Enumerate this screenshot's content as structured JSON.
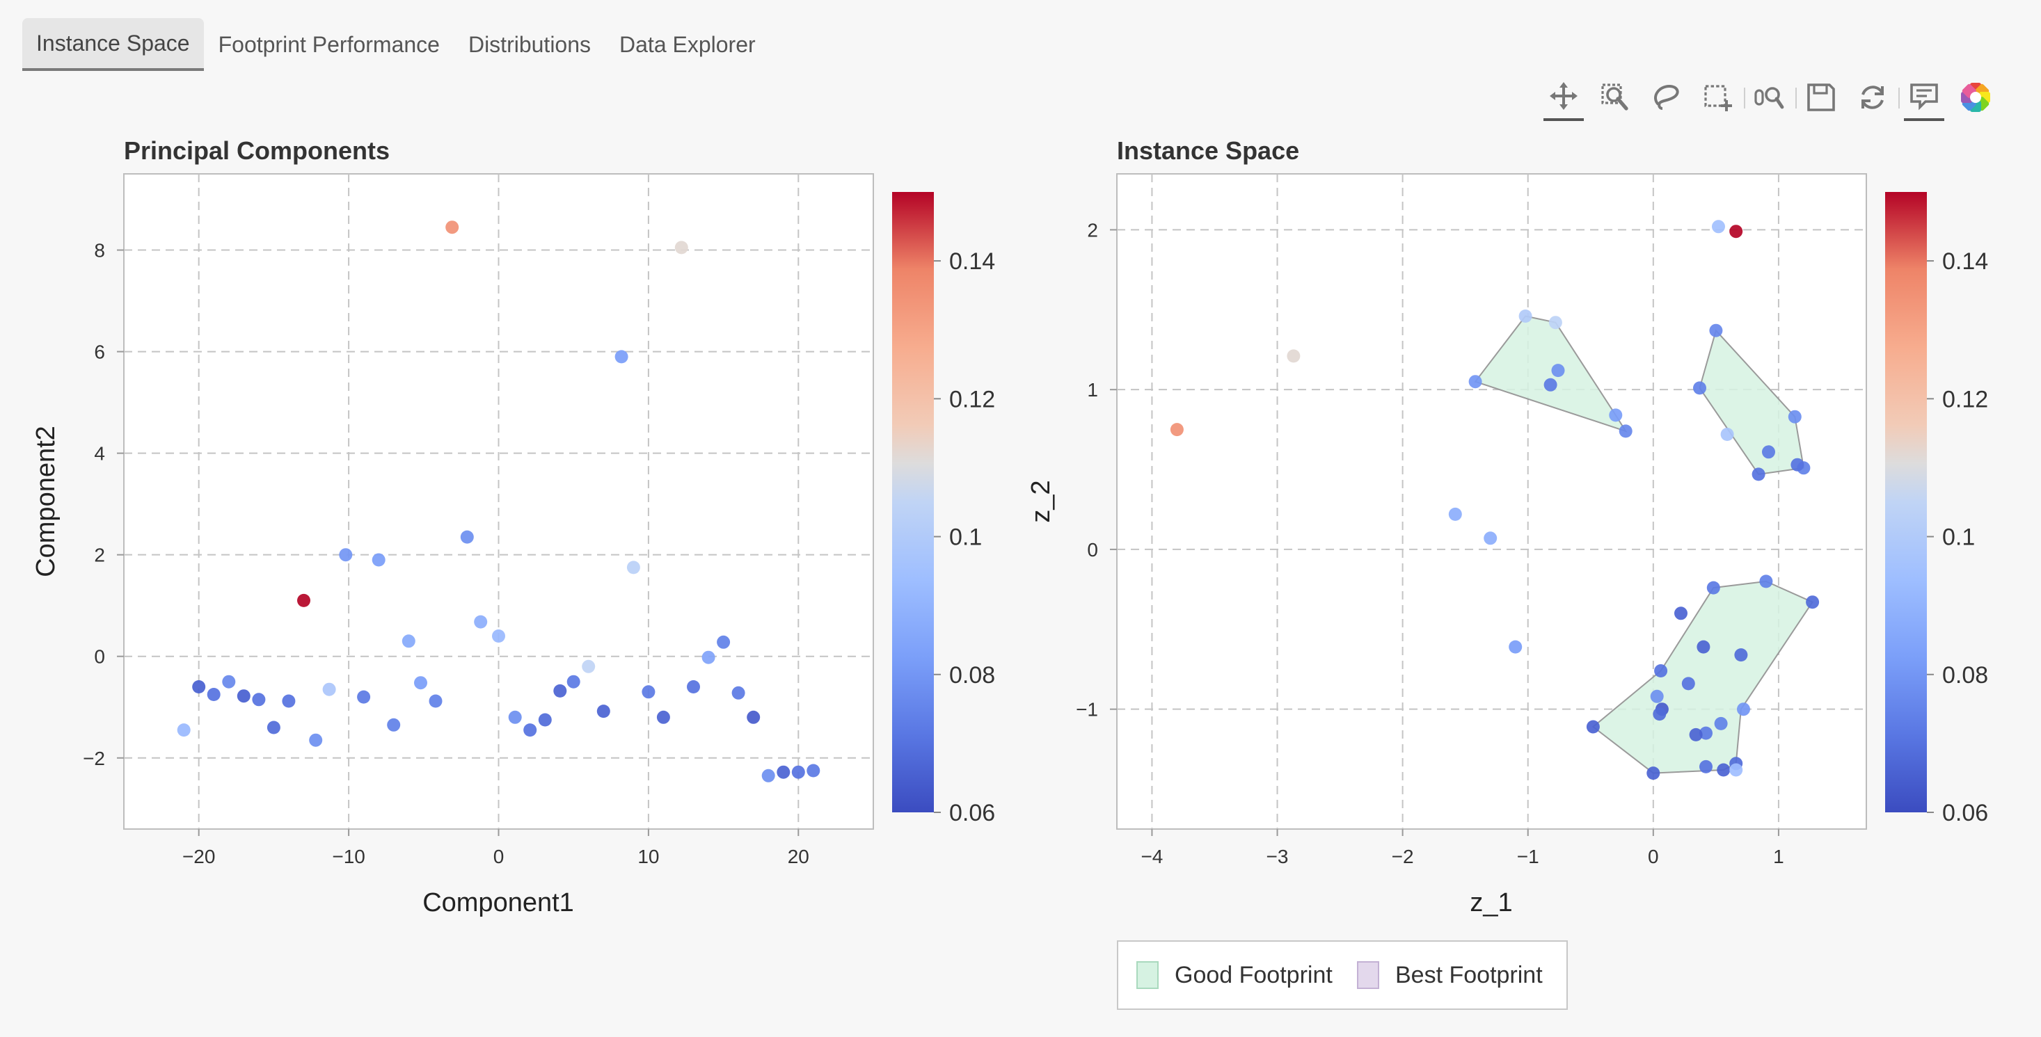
{
  "tabs": [
    {
      "label": "Instance Space",
      "active": true
    },
    {
      "label": "Footprint Performance",
      "active": false
    },
    {
      "label": "Distributions",
      "active": false
    },
    {
      "label": "Data Explorer",
      "active": false
    }
  ],
  "toolbar": {
    "tools": [
      {
        "name": "pan-tool-icon",
        "active": true
      },
      {
        "name": "zoom-tool-icon",
        "active": false
      },
      {
        "name": "lasso-tool-icon",
        "active": false
      },
      {
        "name": "box-select-tool-icon",
        "active": false
      },
      {
        "name": "wheel-zoom-tool-icon",
        "active": false
      },
      {
        "name": "save-tool-icon",
        "active": false
      },
      {
        "name": "reset-tool-icon",
        "active": false
      },
      {
        "name": "hover-tool-icon",
        "active": true
      },
      {
        "name": "bokeh-logo-icon",
        "active": false
      }
    ]
  },
  "chart_data": [
    {
      "type": "scatter",
      "title": "Principal Components",
      "xlabel": "Component1",
      "ylabel": "Component2",
      "xlim": [
        -25,
        25
      ],
      "ylim": [
        -3.4,
        9.5
      ],
      "xticks": [
        -20,
        -10,
        0,
        10,
        20
      ],
      "yticks": [
        -2,
        0,
        2,
        4,
        6,
        8
      ],
      "grid": true,
      "colorbar": {
        "min": 0.06,
        "max": 0.15,
        "ticks": [
          "0.06",
          "0.08",
          "0.1",
          "0.12",
          "0.14"
        ],
        "colormap": "coolwarm"
      },
      "points": [
        {
          "x": -20,
          "y": -0.6,
          "v": 0.065
        },
        {
          "x": -21,
          "y": -1.45,
          "v": 0.092
        },
        {
          "x": -19,
          "y": -0.75,
          "v": 0.07
        },
        {
          "x": -18,
          "y": -0.5,
          "v": 0.076
        },
        {
          "x": -17,
          "y": -0.78,
          "v": 0.065
        },
        {
          "x": -16,
          "y": -0.85,
          "v": 0.07
        },
        {
          "x": -15,
          "y": -1.4,
          "v": 0.068
        },
        {
          "x": -14,
          "y": -0.88,
          "v": 0.07
        },
        {
          "x": -13,
          "y": 1.1,
          "v": 0.15
        },
        {
          "x": -12.2,
          "y": -1.65,
          "v": 0.078
        },
        {
          "x": -11.3,
          "y": -0.65,
          "v": 0.098
        },
        {
          "x": -10.2,
          "y": 2.0,
          "v": 0.08
        },
        {
          "x": -9,
          "y": -0.8,
          "v": 0.072
        },
        {
          "x": -8,
          "y": 1.9,
          "v": 0.082
        },
        {
          "x": -7,
          "y": -1.35,
          "v": 0.074
        },
        {
          "x": -6,
          "y": 0.3,
          "v": 0.086
        },
        {
          "x": -5.2,
          "y": -0.52,
          "v": 0.082
        },
        {
          "x": -4.2,
          "y": -0.88,
          "v": 0.074
        },
        {
          "x": -3.1,
          "y": 8.45,
          "v": 0.135
        },
        {
          "x": -2.1,
          "y": 2.35,
          "v": 0.078
        },
        {
          "x": -1.2,
          "y": 0.68,
          "v": 0.088
        },
        {
          "x": 0,
          "y": 0.4,
          "v": 0.092
        },
        {
          "x": 1.1,
          "y": -1.2,
          "v": 0.078
        },
        {
          "x": 2.1,
          "y": -1.45,
          "v": 0.07
        },
        {
          "x": 3.1,
          "y": -1.25,
          "v": 0.068
        },
        {
          "x": 4.1,
          "y": -0.68,
          "v": 0.066
        },
        {
          "x": 5,
          "y": -0.5,
          "v": 0.072
        },
        {
          "x": 6,
          "y": -0.2,
          "v": 0.105
        },
        {
          "x": 7,
          "y": -1.08,
          "v": 0.066
        },
        {
          "x": 8.2,
          "y": 5.9,
          "v": 0.082
        },
        {
          "x": 9,
          "y": 1.75,
          "v": 0.103
        },
        {
          "x": 10,
          "y": -0.7,
          "v": 0.072
        },
        {
          "x": 11,
          "y": -1.2,
          "v": 0.066
        },
        {
          "x": 12.2,
          "y": 8.05,
          "v": 0.112
        },
        {
          "x": 13,
          "y": -0.6,
          "v": 0.07
        },
        {
          "x": 14,
          "y": -0.02,
          "v": 0.084
        },
        {
          "x": 15,
          "y": 0.28,
          "v": 0.074
        },
        {
          "x": 16,
          "y": -0.72,
          "v": 0.072
        },
        {
          "x": 17,
          "y": -1.2,
          "v": 0.064
        },
        {
          "x": 18,
          "y": -2.35,
          "v": 0.078
        },
        {
          "x": 19,
          "y": -2.28,
          "v": 0.066
        },
        {
          "x": 20,
          "y": -2.28,
          "v": 0.07
        },
        {
          "x": 21,
          "y": -2.25,
          "v": 0.072
        }
      ]
    },
    {
      "type": "scatter",
      "title": "Instance Space",
      "xlabel": "z_1",
      "ylabel": "z_2",
      "xlim": [
        -4.28,
        1.7
      ],
      "ylim": [
        -1.75,
        2.35
      ],
      "xticks": [
        -4,
        -3,
        -2,
        -1,
        0,
        1
      ],
      "yticks": [
        -1,
        0,
        1,
        2
      ],
      "grid": true,
      "colorbar": {
        "min": 0.06,
        "max": 0.15,
        "ticks": [
          "0.06",
          "0.08",
          "0.1",
          "0.12",
          "0.14"
        ],
        "colormap": "coolwarm"
      },
      "legend": {
        "placement": "bottom-left",
        "items": [
          {
            "label": "Good Footprint",
            "color": "#d6f2e2"
          },
          {
            "label": "Best Footprint",
            "color": "#e3d8ec"
          }
        ]
      },
      "polygons": [
        {
          "series": "Good Footprint",
          "vertices": [
            [
              -1.42,
              1.05
            ],
            [
              -1.02,
              1.46
            ],
            [
              -0.78,
              1.42
            ],
            [
              -0.3,
              0.84
            ],
            [
              -0.22,
              0.74
            ]
          ]
        },
        {
          "series": "Good Footprint",
          "vertices": [
            [
              0.5,
              1.37
            ],
            [
              1.13,
              0.83
            ],
            [
              1.2,
              0.51
            ],
            [
              0.84,
              0.47
            ],
            [
              0.37,
              1.01
            ]
          ]
        },
        {
          "series": "Good Footprint",
          "vertices": [
            [
              0.9,
              -0.2
            ],
            [
              1.27,
              -0.33
            ],
            [
              0.7,
              -1.0
            ],
            [
              0.66,
              -1.34
            ],
            [
              0.56,
              -1.38
            ],
            [
              0,
              -1.4
            ],
            [
              -0.48,
              -1.11
            ],
            [
              0.06,
              -0.76
            ],
            [
              0.48,
              -0.24
            ]
          ]
        }
      ],
      "points": [
        {
          "x": -3.8,
          "y": 0.75,
          "v": 0.135
        },
        {
          "x": -2.87,
          "y": 1.21,
          "v": 0.112
        },
        {
          "x": -1.42,
          "y": 1.05,
          "v": 0.08
        },
        {
          "x": -1.02,
          "y": 1.46,
          "v": 0.1
        },
        {
          "x": -0.78,
          "y": 1.42,
          "v": 0.104
        },
        {
          "x": -0.82,
          "y": 1.03,
          "v": 0.072
        },
        {
          "x": -0.76,
          "y": 1.12,
          "v": 0.078
        },
        {
          "x": -0.3,
          "y": 0.84,
          "v": 0.082
        },
        {
          "x": -0.22,
          "y": 0.74,
          "v": 0.076
        },
        {
          "x": -1.58,
          "y": 0.22,
          "v": 0.088
        },
        {
          "x": -1.3,
          "y": 0.07,
          "v": 0.088
        },
        {
          "x": -1.1,
          "y": -0.61,
          "v": 0.082
        },
        {
          "x": 0.52,
          "y": 2.02,
          "v": 0.095
        },
        {
          "x": 0.66,
          "y": 1.99,
          "v": 0.15
        },
        {
          "x": 0.5,
          "y": 1.37,
          "v": 0.076
        },
        {
          "x": 0.37,
          "y": 1.01,
          "v": 0.074
        },
        {
          "x": 0.59,
          "y": 0.72,
          "v": 0.097
        },
        {
          "x": 1.13,
          "y": 0.83,
          "v": 0.078
        },
        {
          "x": 0.92,
          "y": 0.61,
          "v": 0.072
        },
        {
          "x": 1.2,
          "y": 0.51,
          "v": 0.074
        },
        {
          "x": 1.15,
          "y": 0.53,
          "v": 0.07
        },
        {
          "x": 0.84,
          "y": 0.47,
          "v": 0.07
        },
        {
          "x": 0.9,
          "y": -0.2,
          "v": 0.074
        },
        {
          "x": 1.27,
          "y": -0.33,
          "v": 0.068
        },
        {
          "x": 0.48,
          "y": -0.24,
          "v": 0.072
        },
        {
          "x": 0.22,
          "y": -0.4,
          "v": 0.066
        },
        {
          "x": 0.4,
          "y": -0.61,
          "v": 0.066
        },
        {
          "x": 0.7,
          "y": -0.66,
          "v": 0.068
        },
        {
          "x": 0.06,
          "y": -0.76,
          "v": 0.07
        },
        {
          "x": 0.28,
          "y": -0.84,
          "v": 0.07
        },
        {
          "x": 0.03,
          "y": -0.92,
          "v": 0.078
        },
        {
          "x": 0.07,
          "y": -1.0,
          "v": 0.064
        },
        {
          "x": 0.05,
          "y": -1.03,
          "v": 0.068
        },
        {
          "x": 0.72,
          "y": -1.0,
          "v": 0.08
        },
        {
          "x": 0.54,
          "y": -1.09,
          "v": 0.074
        },
        {
          "x": 0.42,
          "y": -1.15,
          "v": 0.072
        },
        {
          "x": 0.34,
          "y": -1.16,
          "v": 0.066
        },
        {
          "x": -0.48,
          "y": -1.11,
          "v": 0.066
        },
        {
          "x": 0.42,
          "y": -1.36,
          "v": 0.07
        },
        {
          "x": 0.56,
          "y": -1.38,
          "v": 0.066
        },
        {
          "x": 0.66,
          "y": -1.34,
          "v": 0.068
        },
        {
          "x": 0.66,
          "y": -1.38,
          "v": 0.094
        },
        {
          "x": 0,
          "y": -1.4,
          "v": 0.066
        }
      ]
    }
  ]
}
